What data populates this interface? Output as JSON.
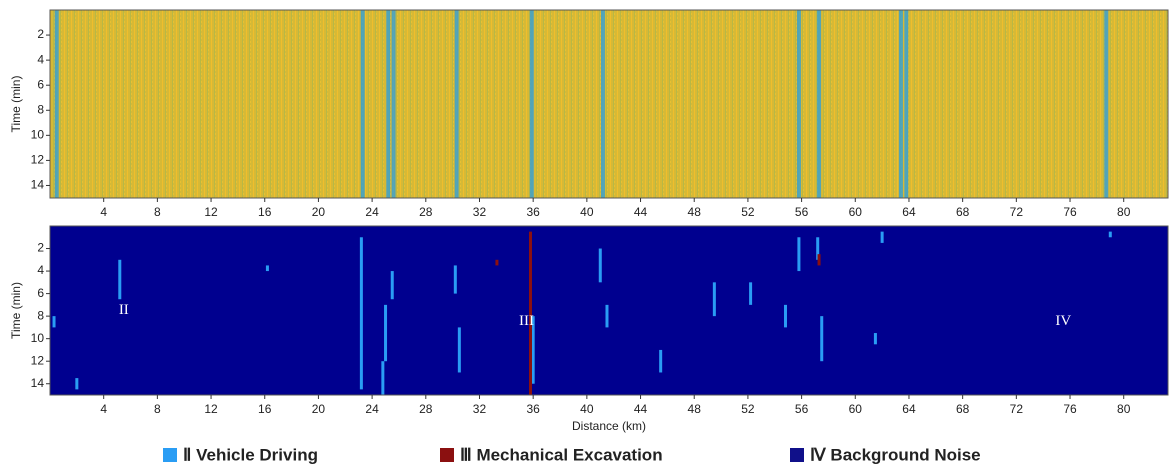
{
  "chart_data": [
    {
      "type": "heatmap",
      "ylabel": "Time (min)",
      "xlim": [
        0,
        83.3
      ],
      "ylim": [
        0,
        15
      ],
      "xticks": [
        4,
        8,
        12,
        16,
        20,
        24,
        28,
        32,
        36,
        40,
        44,
        48,
        52,
        56,
        60,
        64,
        68,
        72,
        76,
        80
      ],
      "yticks": [
        2,
        4,
        6,
        8,
        10,
        12,
        14
      ],
      "color": "#d9b834",
      "stripe_color": "#2f9fd8",
      "stripes": [
        0.5,
        23.3,
        25.2,
        25.6,
        30.3,
        35.9,
        41.2,
        55.8,
        57.3,
        63.4,
        63.8,
        78.7
      ]
    },
    {
      "type": "events",
      "ylabel": "Time (min)",
      "xlabel": "Distance (km)",
      "xlim": [
        0,
        83.3
      ],
      "ylim": [
        0,
        15
      ],
      "xticks": [
        4,
        8,
        12,
        16,
        20,
        24,
        28,
        32,
        36,
        40,
        44,
        48,
        52,
        56,
        60,
        64,
        68,
        72,
        76,
        80
      ],
      "yticks": [
        2,
        4,
        6,
        8,
        10,
        12,
        14
      ],
      "color": "#00008f",
      "series": [
        {
          "name": "Ⅱ Vehicle Driving",
          "color": "#2a9df4",
          "x": [
            5.2,
            25.5,
            30.2,
            25,
            24.8,
            41,
            41.5,
            49.5,
            55.8,
            57.2,
            57.5,
            61.5,
            0.3,
            2,
            36,
            45.5,
            54.8,
            62,
            79,
            23.2,
            30.5,
            52.2,
            16.2
          ],
          "y_start": [
            3,
            4,
            3.5,
            7,
            12,
            2,
            7,
            5,
            1,
            1,
            8,
            9.5,
            8,
            13.5,
            8,
            11,
            7,
            0.5,
            0.5,
            1,
            9,
            5,
            3.5
          ],
          "y_end": [
            6.5,
            6.5,
            6,
            12,
            15,
            5,
            9,
            8,
            4,
            3,
            12,
            10.5,
            9,
            14.5,
            14,
            13,
            9,
            1.5,
            1,
            14.5,
            13,
            7,
            4
          ]
        },
        {
          "name": "Ⅲ Mechanical Excavation",
          "color": "#8b1010",
          "x": [
            35.8,
            57.3,
            33.3
          ],
          "y_start": [
            0.5,
            2.5,
            3
          ],
          "y_end": [
            15,
            3.5,
            3.5
          ]
        },
        {
          "name": "Ⅳ Background Noise",
          "color": "#10108a"
        }
      ],
      "annotations": [
        {
          "text": "II",
          "x": 5.5,
          "y": 7.5
        },
        {
          "text": "III",
          "x": 35.5,
          "y": 8.5
        },
        {
          "text": "IV",
          "x": 75.5,
          "y": 8.5
        }
      ]
    }
  ]
}
